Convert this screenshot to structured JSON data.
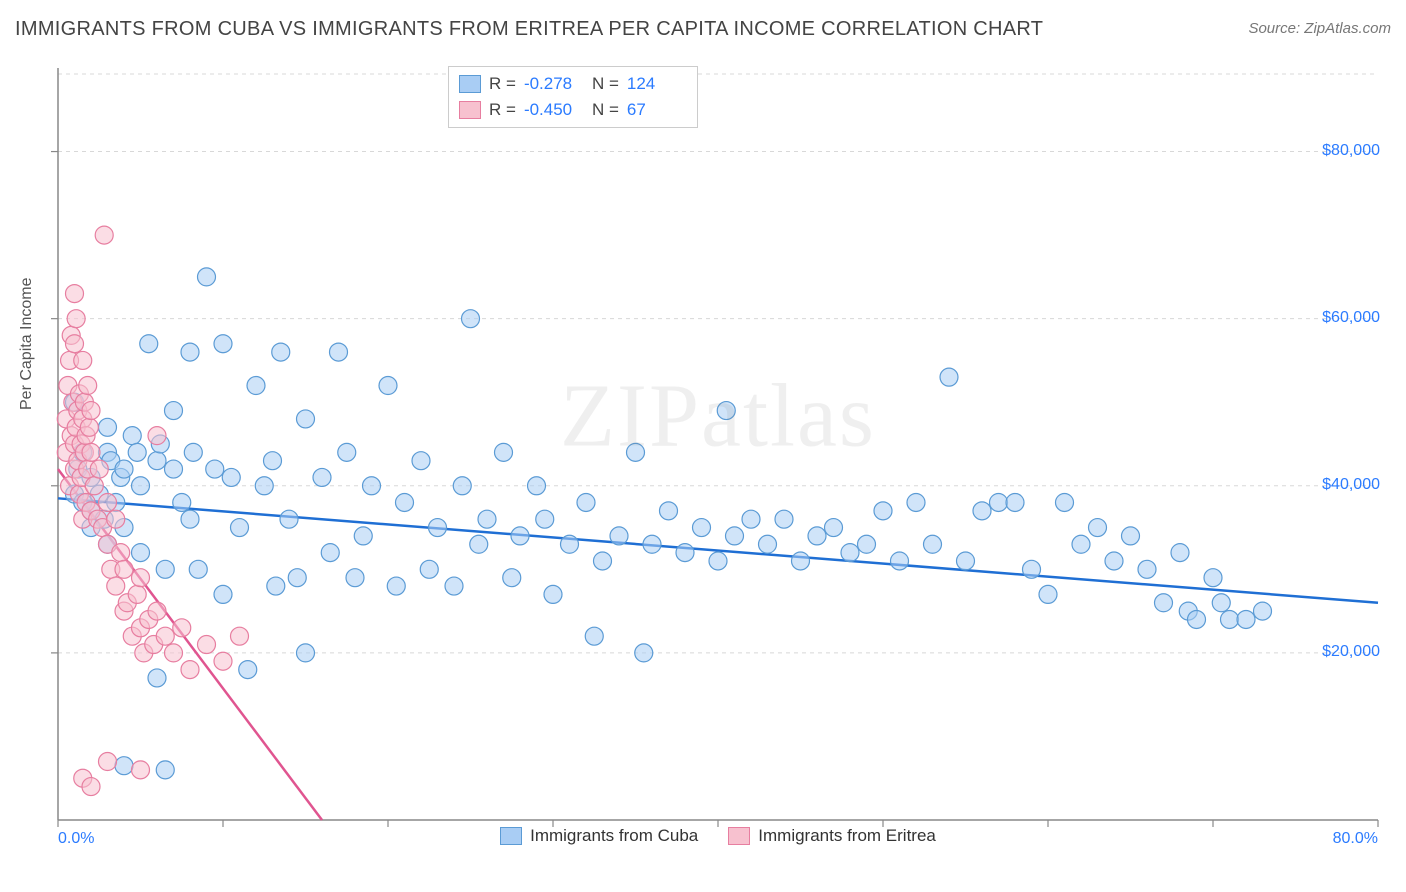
{
  "title": "IMMIGRANTS FROM CUBA VS IMMIGRANTS FROM ERITREA PER CAPITA INCOME CORRELATION CHART",
  "source": "Source: ZipAtlas.com",
  "watermark": "ZIPatlas",
  "y_axis_label": "Per Capita Income",
  "chart": {
    "type": "scatter",
    "background_color": "#ffffff",
    "grid_color": "#d8d8d8",
    "axis_color": "#888888",
    "tick_color": "#888888",
    "xlim": [
      0,
      80
    ],
    "ylim": [
      0,
      90000
    ],
    "x_tick_step_pct": 10,
    "y_ticks": [
      20000,
      40000,
      60000,
      80000
    ],
    "y_tick_labels": [
      "$20,000",
      "$40,000",
      "$60,000",
      "$80,000"
    ],
    "x_min_label": "0.0%",
    "x_max_label": "80.0%",
    "marker_radius": 9,
    "marker_stroke_width": 1.2,
    "trend_line_width": 2.5,
    "series": [
      {
        "id": "cuba",
        "label": "Immigrants from Cuba",
        "fill_color": "#a9cdf4",
        "stroke_color": "#5b9bd5",
        "line_color": "#1f6fd4",
        "R": "-0.278",
        "N": "124",
        "trend_line": {
          "x1": 0,
          "y1": 38500,
          "x2": 80,
          "y2": 26000
        },
        "points": [
          [
            1.0,
            39000
          ],
          [
            1.2,
            42000
          ],
          [
            1.5,
            38000
          ],
          [
            1.5,
            44000
          ],
          [
            1.0,
            50000
          ],
          [
            2.0,
            41000
          ],
          [
            2.0,
            37000
          ],
          [
            2.5,
            39000
          ],
          [
            2.8,
            36000
          ],
          [
            3.0,
            44000
          ],
          [
            3.0,
            47000
          ],
          [
            3.2,
            43000
          ],
          [
            3.5,
            38000
          ],
          [
            3.8,
            41000
          ],
          [
            4.0,
            35000
          ],
          [
            4.0,
            42000
          ],
          [
            4.5,
            46000
          ],
          [
            4.8,
            44000
          ],
          [
            5.0,
            40000
          ],
          [
            5.0,
            32000
          ],
          [
            5.5,
            57000
          ],
          [
            6.0,
            43000
          ],
          [
            6.0,
            17000
          ],
          [
            6.2,
            45000
          ],
          [
            6.5,
            30000
          ],
          [
            7.0,
            49000
          ],
          [
            7.0,
            42000
          ],
          [
            7.5,
            38000
          ],
          [
            8.0,
            56000
          ],
          [
            8.0,
            36000
          ],
          [
            8.2,
            44000
          ],
          [
            8.5,
            30000
          ],
          [
            9.0,
            65000
          ],
          [
            9.5,
            42000
          ],
          [
            10.0,
            57000
          ],
          [
            10.0,
            27000
          ],
          [
            10.5,
            41000
          ],
          [
            11.0,
            35000
          ],
          [
            11.5,
            18000
          ],
          [
            12.0,
            52000
          ],
          [
            12.5,
            40000
          ],
          [
            13.0,
            43000
          ],
          [
            13.2,
            28000
          ],
          [
            13.5,
            56000
          ],
          [
            14.0,
            36000
          ],
          [
            14.5,
            29000
          ],
          [
            15.0,
            48000
          ],
          [
            15.0,
            20000
          ],
          [
            16.0,
            41000
          ],
          [
            16.5,
            32000
          ],
          [
            17.0,
            56000
          ],
          [
            17.5,
            44000
          ],
          [
            18.0,
            29000
          ],
          [
            18.5,
            34000
          ],
          [
            19.0,
            40000
          ],
          [
            20.0,
            52000
          ],
          [
            20.5,
            28000
          ],
          [
            21.0,
            38000
          ],
          [
            22.0,
            43000
          ],
          [
            22.5,
            30000
          ],
          [
            23.0,
            35000
          ],
          [
            24.0,
            28000
          ],
          [
            24.5,
            40000
          ],
          [
            25.0,
            60000
          ],
          [
            25.5,
            33000
          ],
          [
            26.0,
            36000
          ],
          [
            27.0,
            44000
          ],
          [
            27.5,
            29000
          ],
          [
            28.0,
            34000
          ],
          [
            29.0,
            40000
          ],
          [
            29.5,
            36000
          ],
          [
            30.0,
            27000
          ],
          [
            31.0,
            33000
          ],
          [
            32.0,
            38000
          ],
          [
            32.5,
            22000
          ],
          [
            33.0,
            31000
          ],
          [
            34.0,
            34000
          ],
          [
            35.0,
            44000
          ],
          [
            35.5,
            20000
          ],
          [
            36.0,
            33000
          ],
          [
            37.0,
            37000
          ],
          [
            38.0,
            32000
          ],
          [
            39.0,
            35000
          ],
          [
            40.0,
            31000
          ],
          [
            40.5,
            49000
          ],
          [
            41.0,
            34000
          ],
          [
            42.0,
            36000
          ],
          [
            43.0,
            33000
          ],
          [
            44.0,
            36000
          ],
          [
            45.0,
            31000
          ],
          [
            46.0,
            34000
          ],
          [
            47.0,
            35000
          ],
          [
            48.0,
            32000
          ],
          [
            49.0,
            33000
          ],
          [
            50.0,
            37000
          ],
          [
            51.0,
            31000
          ],
          [
            52.0,
            38000
          ],
          [
            53.0,
            33000
          ],
          [
            54.0,
            53000
          ],
          [
            55.0,
            31000
          ],
          [
            56.0,
            37000
          ],
          [
            57.0,
            38000
          ],
          [
            58.0,
            38000
          ],
          [
            59.0,
            30000
          ],
          [
            60.0,
            27000
          ],
          [
            61.0,
            38000
          ],
          [
            62.0,
            33000
          ],
          [
            63.0,
            35000
          ],
          [
            64.0,
            31000
          ],
          [
            65.0,
            34000
          ],
          [
            66.0,
            30000
          ],
          [
            67.0,
            26000
          ],
          [
            68.0,
            32000
          ],
          [
            68.5,
            25000
          ],
          [
            69.0,
            24000
          ],
          [
            70.0,
            29000
          ],
          [
            70.5,
            26000
          ],
          [
            71.0,
            24000
          ],
          [
            72.0,
            24000
          ],
          [
            73.0,
            25000
          ],
          [
            2.0,
            35000
          ],
          [
            3.0,
            33000
          ],
          [
            4.0,
            6500
          ],
          [
            6.5,
            6000
          ]
        ]
      },
      {
        "id": "eritrea",
        "label": "Immigrants from Eritrea",
        "fill_color": "#f7c1cf",
        "stroke_color": "#e77ea0",
        "line_color": "#e05590",
        "R": "-0.450",
        "N": "67",
        "trend_line": {
          "x1": 0,
          "y1": 42000,
          "x2": 16,
          "y2": 0
        },
        "points": [
          [
            0.5,
            44000
          ],
          [
            0.5,
            48000
          ],
          [
            0.6,
            52000
          ],
          [
            0.7,
            55000
          ],
          [
            0.7,
            40000
          ],
          [
            0.8,
            58000
          ],
          [
            0.8,
            46000
          ],
          [
            0.9,
            50000
          ],
          [
            1.0,
            57000
          ],
          [
            1.0,
            45000
          ],
          [
            1.0,
            42000
          ],
          [
            1.1,
            60000
          ],
          [
            1.1,
            47000
          ],
          [
            1.2,
            49000
          ],
          [
            1.2,
            43000
          ],
          [
            1.3,
            51000
          ],
          [
            1.3,
            39000
          ],
          [
            1.4,
            45000
          ],
          [
            1.4,
            41000
          ],
          [
            1.5,
            48000
          ],
          [
            1.5,
            55000
          ],
          [
            1.5,
            36000
          ],
          [
            1.6,
            50000
          ],
          [
            1.6,
            44000
          ],
          [
            1.7,
            46000
          ],
          [
            1.7,
            38000
          ],
          [
            1.8,
            52000
          ],
          [
            1.8,
            42000
          ],
          [
            1.9,
            47000
          ],
          [
            2.0,
            44000
          ],
          [
            2.0,
            37000
          ],
          [
            2.0,
            49000
          ],
          [
            2.2,
            40000
          ],
          [
            2.4,
            36000
          ],
          [
            2.5,
            42000
          ],
          [
            2.7,
            35000
          ],
          [
            2.8,
            70000
          ],
          [
            3.0,
            38000
          ],
          [
            3.0,
            33000
          ],
          [
            3.2,
            30000
          ],
          [
            3.5,
            36000
          ],
          [
            3.5,
            28000
          ],
          [
            3.8,
            32000
          ],
          [
            4.0,
            25000
          ],
          [
            4.0,
            30000
          ],
          [
            4.2,
            26000
          ],
          [
            4.5,
            22000
          ],
          [
            4.8,
            27000
          ],
          [
            5.0,
            23000
          ],
          [
            5.0,
            29000
          ],
          [
            5.2,
            20000
          ],
          [
            5.5,
            24000
          ],
          [
            5.8,
            21000
          ],
          [
            6.0,
            46000
          ],
          [
            6.0,
            25000
          ],
          [
            6.5,
            22000
          ],
          [
            7.0,
            20000
          ],
          [
            7.5,
            23000
          ],
          [
            8.0,
            18000
          ],
          [
            9.0,
            21000
          ],
          [
            10.0,
            19000
          ],
          [
            11.0,
            22000
          ],
          [
            1.5,
            5000
          ],
          [
            2.0,
            4000
          ],
          [
            3.0,
            7000
          ],
          [
            5.0,
            6000
          ],
          [
            1.0,
            63000
          ]
        ]
      }
    ]
  },
  "bottom_legend": [
    {
      "label": "Immigrants from Cuba",
      "fill": "#a9cdf4",
      "stroke": "#5b9bd5"
    },
    {
      "label": "Immigrants from Eritrea",
      "fill": "#f7c1cf",
      "stroke": "#e77ea0"
    }
  ]
}
